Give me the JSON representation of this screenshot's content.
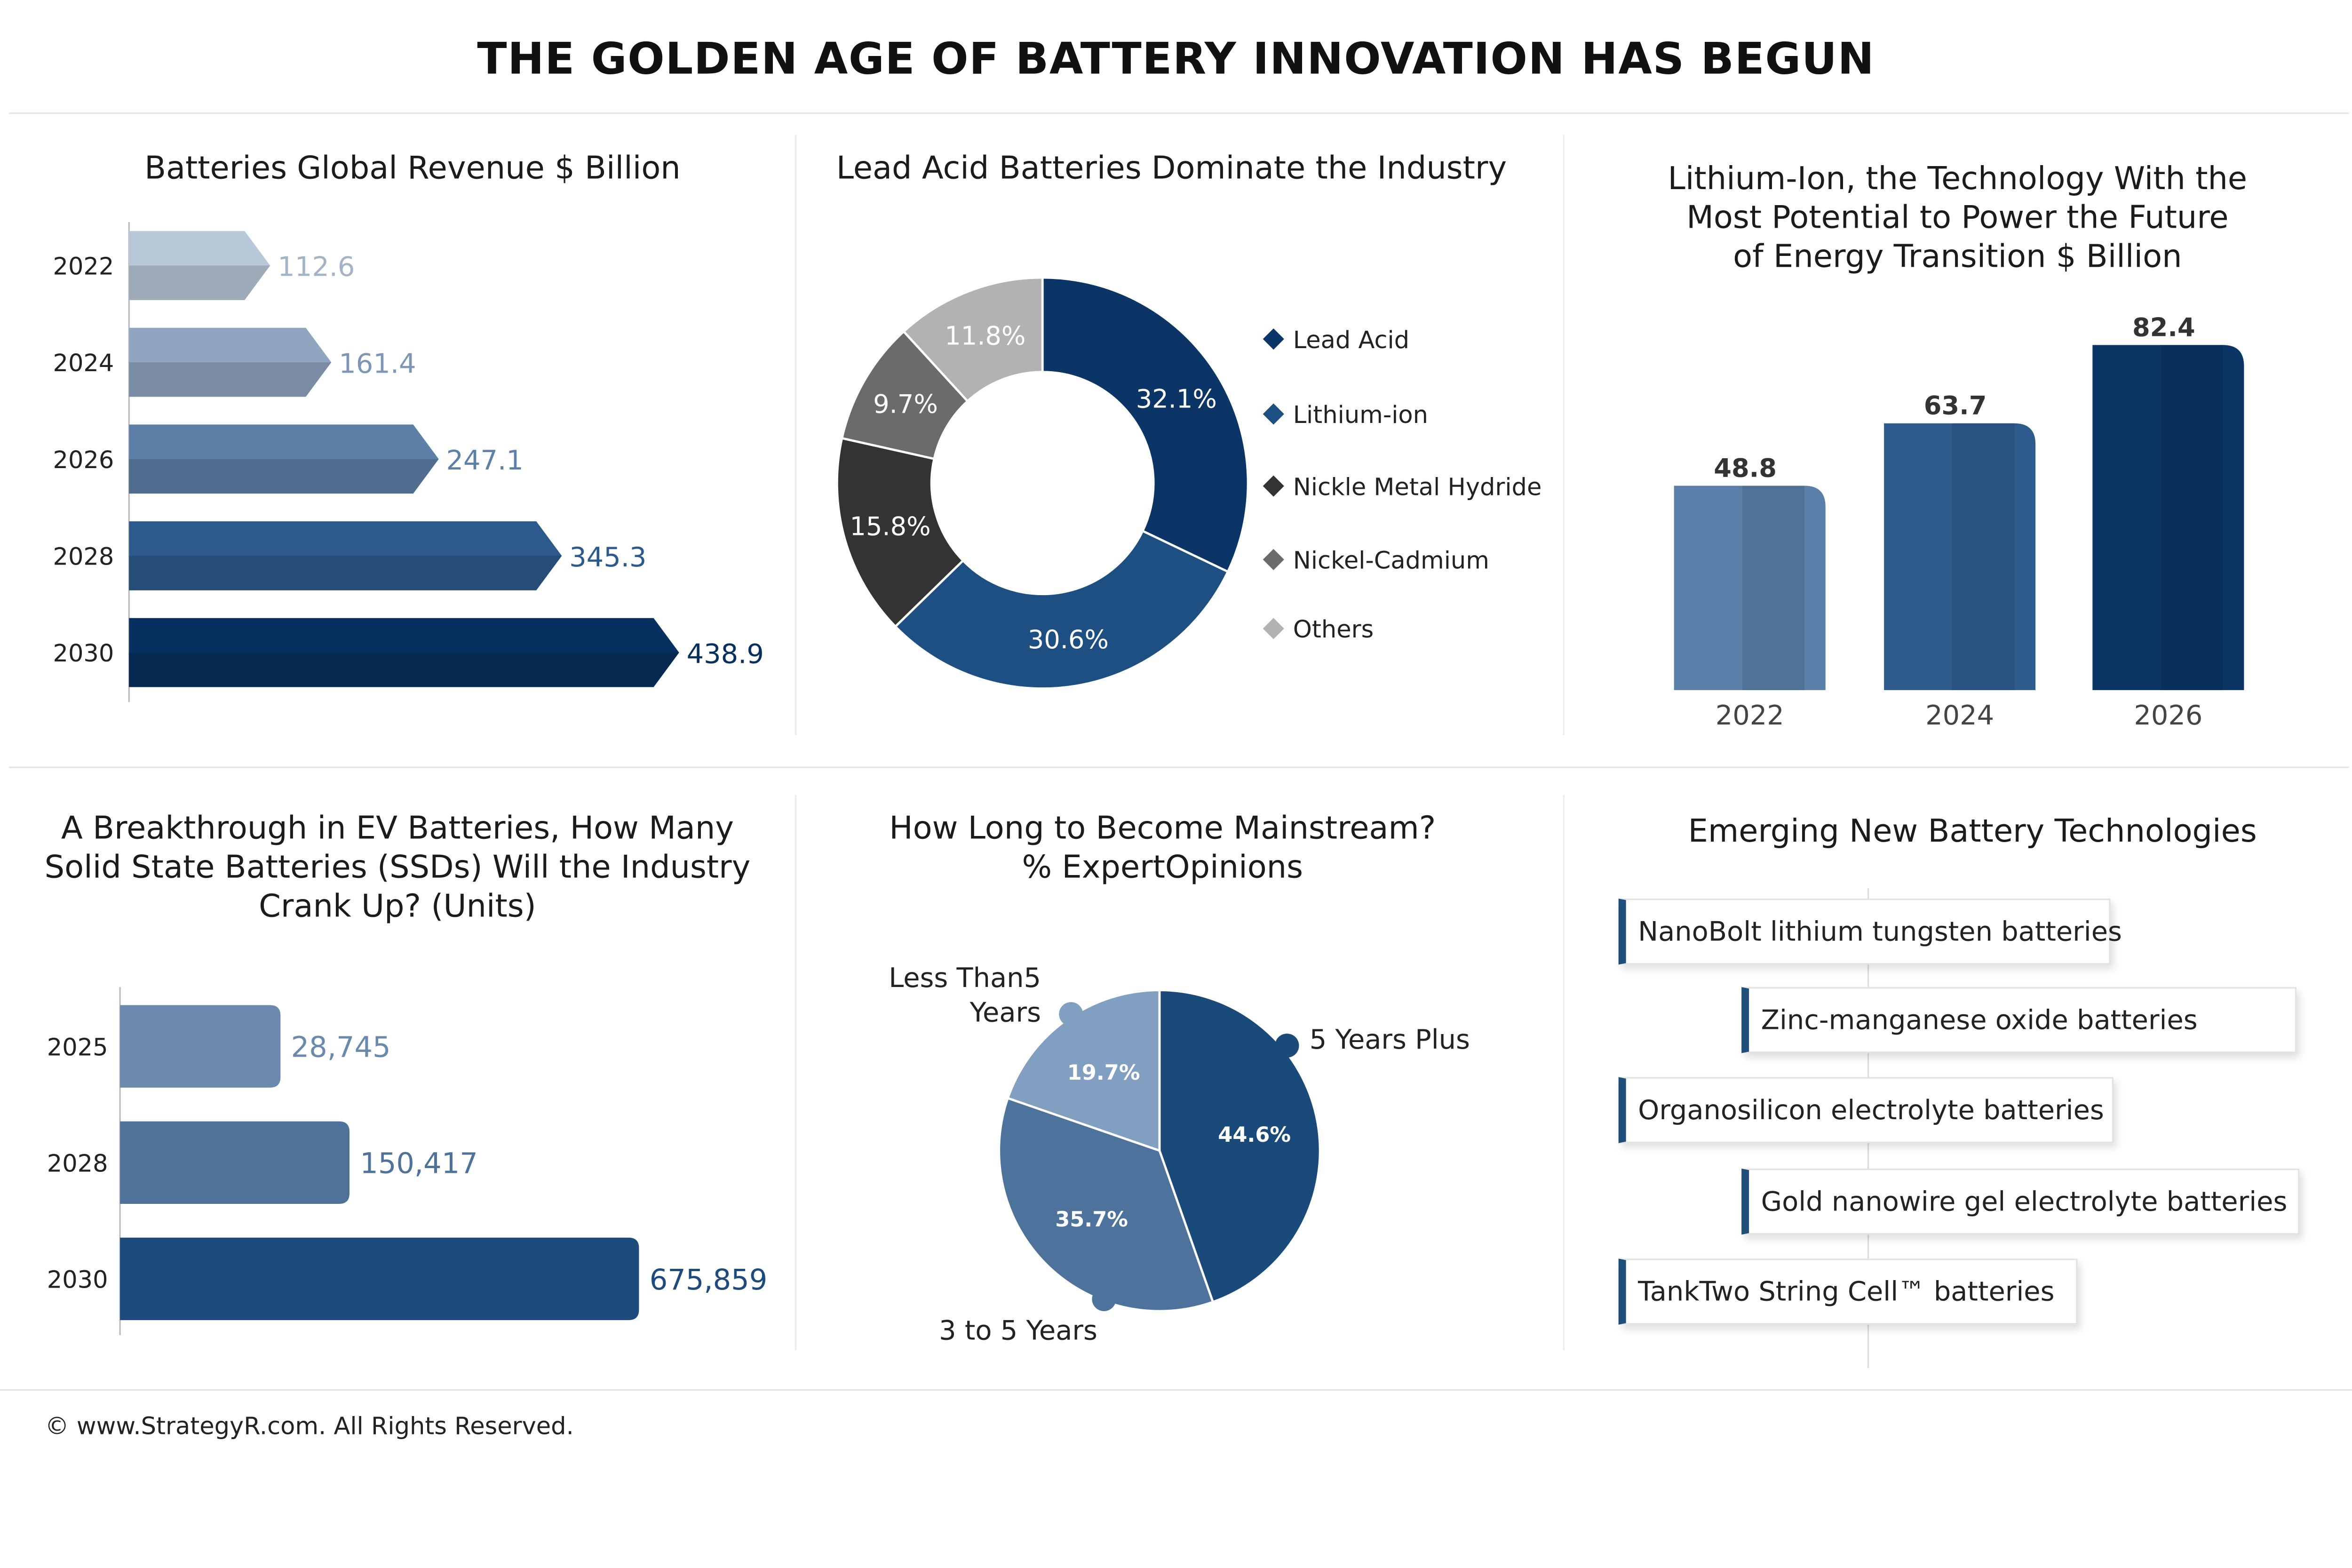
{
  "title": "THE GOLDEN AGE OF BATTERY INNOVATION HAS BEGUN",
  "footer": "© www.StrategyR.com. All Rights Reserved.",
  "colors": {
    "revenue": [
      "#b9c8d8",
      "#8fa5c0",
      "#5e80a8",
      "#2d5a8c",
      "#06305f"
    ],
    "donut": [
      "#0b3566",
      "#1d4f82",
      "#333333",
      "#6b6b6b",
      "#b2b2b2"
    ],
    "lithium": [
      "#5a7fa8",
      "#2e5b8e",
      "#0a3565"
    ],
    "ssd": [
      "#6a89ad",
      "#4f729b",
      "#1e4b7d"
    ],
    "pie": [
      "#1a4a7a",
      "#4d729c",
      "#819fc0"
    ]
  },
  "chart_data": [
    {
      "type": "bar",
      "title": "Batteries Global Revenue $ Billion",
      "orientation": "horizontal",
      "categories": [
        "2022",
        "2024",
        "2026",
        "2028",
        "2030"
      ],
      "values": [
        112.6,
        161.4,
        247.1,
        345.3,
        438.9
      ]
    },
    {
      "type": "pie",
      "title": "Lead Acid Batteries Dominate the Industry",
      "categories": [
        "Lead Acid",
        "Lithium-ion",
        "Nickle Metal Hydride",
        "Nickel-Cadmium",
        "Others"
      ],
      "values": [
        32.1,
        30.6,
        15.8,
        9.7,
        11.8
      ],
      "labels": [
        "32.1%",
        "30.6%",
        "15.8%",
        "9.7%",
        "11.8%"
      ],
      "legend": "right"
    },
    {
      "type": "bar",
      "title": "Lithium-Ion, the Technology With the Most Potential to Power the Future of Energy Transition $ Billion",
      "categories": [
        "2022",
        "2024",
        "2026"
      ],
      "values": [
        48.8,
        63.7,
        82.4
      ]
    },
    {
      "type": "bar",
      "title": "A Breakthrough in EV Batteries, How Many Solid State Batteries (SSDs) Will the Industry Crank Up? (Units)",
      "orientation": "horizontal",
      "categories": [
        "2025",
        "2028",
        "2030"
      ],
      "values": [
        28745,
        150417,
        675859
      ],
      "labels": [
        "28,745",
        "150,417",
        "675,859"
      ]
    },
    {
      "type": "pie",
      "title": "How Long to Become Mainstream? % ExpertOpinions",
      "categories": [
        "5 Years Plus",
        "3 to 5 Years",
        "Less Than5 Years"
      ],
      "values": [
        44.6,
        35.7,
        19.7
      ],
      "labels": [
        "44.6%",
        "35.7%",
        "19.7%"
      ]
    }
  ],
  "panels": {
    "lithium_title": [
      "Lithium-Ion, the Technology With the",
      "Most Potential to Power the Future",
      "of Energy Transition $ Billion"
    ],
    "ssd_title": [
      "A Breakthrough in EV Batteries, How Many",
      "Solid State Batteries (SSDs) Will the Industry",
      "Crank Up? (Units)"
    ],
    "mainstream_title": [
      "How Long to Become Mainstream?",
      "% ExpertOpinions"
    ],
    "mainstream_callouts": [
      "5 Years Plus",
      "3 to 5 Years",
      "Less Than5",
      "Years"
    ]
  },
  "emerging": {
    "title": "Emerging New Battery Technologies",
    "items": [
      "NanoBolt lithium tungsten batteries",
      "Zinc-manganese oxide batteries",
      "Organosilicon electrolyte batteries",
      "Gold nanowire gel electrolyte batteries",
      "TankTwo String Cell™ batteries"
    ]
  }
}
